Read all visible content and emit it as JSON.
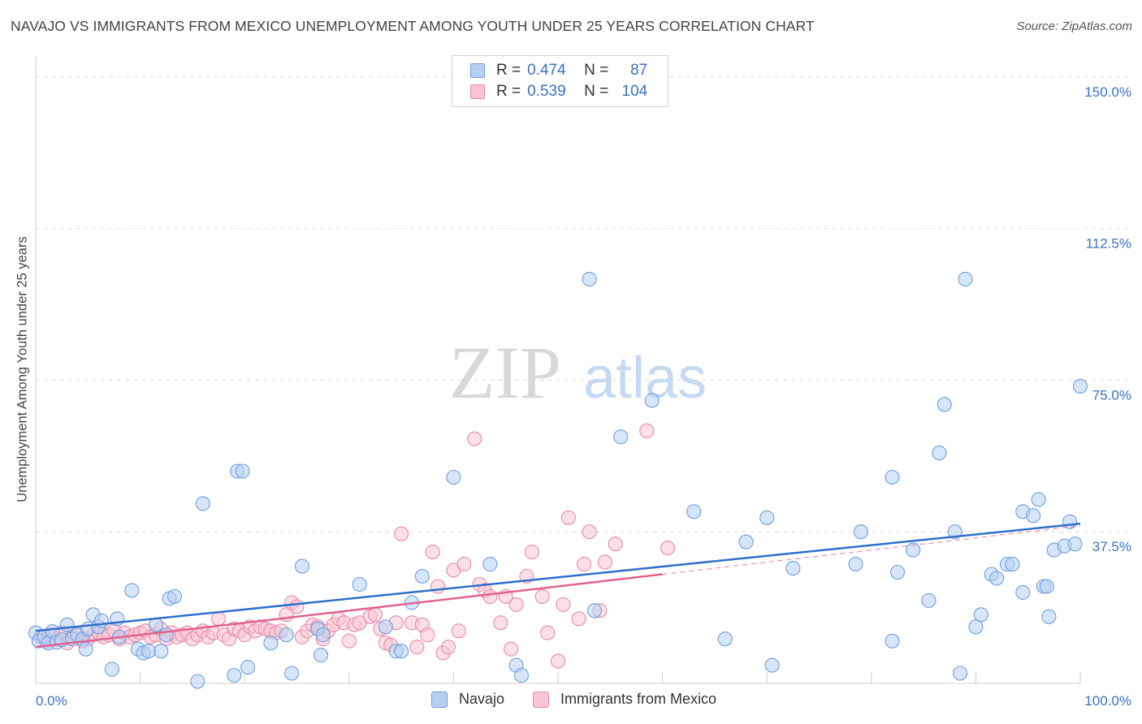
{
  "header": {
    "title": "NAVAJO VS IMMIGRANTS FROM MEXICO UNEMPLOYMENT AMONG YOUTH UNDER 25 YEARS CORRELATION CHART",
    "source": "Source: ZipAtlas.com"
  },
  "watermark": {
    "part1": "ZIP",
    "part2": "atlas"
  },
  "legend_top": {
    "r_label": "R =",
    "n_label": "N =",
    "rows": [
      {
        "r": "0.474",
        "n": "87"
      },
      {
        "r": "0.539",
        "n": "104"
      }
    ]
  },
  "colors": {
    "navajo_fill": "#b7d0f2",
    "navajo_stroke": "#6f9fdc",
    "navajo_line": "#2e6fcc",
    "mexico_fill": "#f9c4d4",
    "mexico_stroke": "#e98aa8",
    "mexico_line": "#e2628f",
    "tick_label": "#3a72c4"
  },
  "chart_data": {
    "type": "scatter",
    "title": "NAVAJO VS IMMIGRANTS FROM MEXICO UNEMPLOYMENT AMONG YOUTH UNDER 25 YEARS CORRELATION CHART",
    "xlabel": "",
    "ylabel": "Unemployment Among Youth under 25 years",
    "xlim": [
      0,
      100
    ],
    "ylim": [
      0,
      155
    ],
    "x_tick_labels": [
      "0.0%",
      "100.0%"
    ],
    "y_tick_labels": [
      "37.5%",
      "75.0%",
      "112.5%",
      "150.0%"
    ],
    "y_ticks": [
      37.5,
      75.0,
      112.5,
      150.0
    ],
    "grid": true,
    "legend_position": "bottom",
    "series": [
      {
        "name": "Navajo",
        "R": 0.474,
        "N": 87,
        "trend": {
          "x": [
            0,
            100
          ],
          "y": [
            13.0,
            39.5
          ]
        },
        "points": [
          [
            0,
            12.5
          ],
          [
            0.3,
            10.5
          ],
          [
            0.8,
            11.5
          ],
          [
            1.2,
            10.0
          ],
          [
            1.6,
            12.8
          ],
          [
            2.0,
            10.2
          ],
          [
            2.5,
            10.8
          ],
          [
            3.0,
            14.5
          ],
          [
            3.5,
            11.0
          ],
          [
            4.0,
            12.0
          ],
          [
            4.5,
            11.0
          ],
          [
            5.0,
            13.5
          ],
          [
            4.8,
            8.5
          ],
          [
            5.5,
            17.0
          ],
          [
            6.0,
            14.0
          ],
          [
            6.3,
            15.5
          ],
          [
            7.3,
            3.5
          ],
          [
            7.8,
            16.0
          ],
          [
            8.0,
            11.5
          ],
          [
            9.2,
            23.0
          ],
          [
            9.8,
            8.5
          ],
          [
            10.3,
            7.5
          ],
          [
            10.8,
            8.0
          ],
          [
            11.5,
            14.5
          ],
          [
            12.0,
            8.0
          ],
          [
            12.5,
            12.0
          ],
          [
            12.8,
            21.0
          ],
          [
            13.3,
            21.5
          ],
          [
            15.5,
            0.5
          ],
          [
            16.0,
            44.5
          ],
          [
            19.0,
            2.0
          ],
          [
            19.3,
            52.5
          ],
          [
            19.8,
            52.5
          ],
          [
            20.3,
            4.0
          ],
          [
            22.5,
            10.0
          ],
          [
            24.0,
            12.0
          ],
          [
            24.5,
            2.5
          ],
          [
            25.5,
            29.0
          ],
          [
            27.0,
            13.5
          ],
          [
            27.3,
            7.0
          ],
          [
            27.5,
            12.0
          ],
          [
            31.0,
            24.5
          ],
          [
            33.5,
            14.0
          ],
          [
            34.5,
            8.0
          ],
          [
            35.0,
            8.0
          ],
          [
            36.0,
            20.0
          ],
          [
            37.0,
            26.5
          ],
          [
            40.0,
            51.0
          ],
          [
            43.5,
            29.5
          ],
          [
            46.0,
            4.5
          ],
          [
            46.5,
            2.0
          ],
          [
            53.5,
            18.0
          ],
          [
            53.0,
            100.0
          ],
          [
            56.0,
            61.0
          ],
          [
            59.0,
            70.0
          ],
          [
            63.0,
            42.5
          ],
          [
            66.0,
            11.0
          ],
          [
            68.0,
            35.0
          ],
          [
            70.0,
            41.0
          ],
          [
            70.5,
            4.5
          ],
          [
            72.5,
            28.5
          ],
          [
            78.5,
            29.5
          ],
          [
            79.0,
            37.5
          ],
          [
            82.0,
            51.0
          ],
          [
            82.5,
            27.5
          ],
          [
            84.0,
            33.0
          ],
          [
            85.5,
            20.5
          ],
          [
            86.5,
            57.0
          ],
          [
            87.0,
            69.0
          ],
          [
            88.0,
            37.5
          ],
          [
            88.5,
            2.5
          ],
          [
            90.0,
            14.0
          ],
          [
            90.5,
            17.0
          ],
          [
            91.5,
            27.0
          ],
          [
            92.0,
            26.0
          ],
          [
            93.0,
            29.5
          ],
          [
            93.5,
            29.5
          ],
          [
            94.5,
            42.5
          ],
          [
            94.5,
            22.5
          ],
          [
            95.5,
            41.5
          ],
          [
            96.0,
            45.5
          ],
          [
            96.5,
            24.0
          ],
          [
            96.8,
            24.0
          ],
          [
            97.0,
            16.5
          ],
          [
            97.5,
            33.0
          ],
          [
            98.5,
            34.0
          ],
          [
            99.0,
            40.0
          ],
          [
            99.5,
            34.5
          ],
          [
            100.0,
            73.5
          ],
          [
            89.0,
            100.0
          ],
          [
            82.0,
            10.5
          ]
        ]
      },
      {
        "name": "Immigrants from Mexico",
        "R": 0.539,
        "N": 104,
        "trend": {
          "x": [
            0,
            60
          ],
          "y": [
            9.0,
            27.0
          ]
        },
        "trend_extension": {
          "x": [
            60,
            100
          ],
          "y": [
            27.0,
            39.0
          ]
        },
        "points": [
          [
            0.5,
            11.5
          ],
          [
            1.0,
            10.5
          ],
          [
            1.5,
            12.0
          ],
          [
            2.0,
            11.0
          ],
          [
            2.5,
            12.5
          ],
          [
            3.0,
            10.0
          ],
          [
            3.5,
            11.5
          ],
          [
            4.0,
            12.0
          ],
          [
            4.5,
            10.5
          ],
          [
            5.0,
            11.0
          ],
          [
            5.5,
            12.0
          ],
          [
            6.0,
            12.5
          ],
          [
            6.5,
            11.5
          ],
          [
            7.0,
            12.0
          ],
          [
            7.5,
            13.0
          ],
          [
            8.0,
            11.0
          ],
          [
            8.5,
            12.5
          ],
          [
            9.0,
            11.5
          ],
          [
            9.5,
            12.0
          ],
          [
            10.0,
            12.5
          ],
          [
            10.5,
            13.0
          ],
          [
            11.0,
            11.5
          ],
          [
            11.5,
            12.0
          ],
          [
            12.0,
            13.5
          ],
          [
            12.5,
            11.0
          ],
          [
            13.0,
            12.5
          ],
          [
            13.5,
            11.5
          ],
          [
            14.0,
            12.0
          ],
          [
            14.5,
            12.5
          ],
          [
            15.0,
            11.0
          ],
          [
            15.5,
            12.0
          ],
          [
            16.0,
            13.0
          ],
          [
            16.5,
            11.5
          ],
          [
            17.0,
            12.5
          ],
          [
            17.5,
            16.0
          ],
          [
            18.0,
            12.0
          ],
          [
            18.5,
            11.0
          ],
          [
            19.0,
            13.5
          ],
          [
            19.5,
            13.0
          ],
          [
            20.0,
            12.0
          ],
          [
            20.5,
            14.0
          ],
          [
            21.0,
            13.0
          ],
          [
            21.5,
            14.0
          ],
          [
            22.0,
            13.5
          ],
          [
            22.5,
            13.0
          ],
          [
            23.0,
            12.5
          ],
          [
            23.5,
            13.0
          ],
          [
            24.0,
            17.0
          ],
          [
            24.5,
            20.0
          ],
          [
            25.0,
            19.0
          ],
          [
            25.5,
            11.5
          ],
          [
            26.0,
            13.0
          ],
          [
            26.5,
            14.5
          ],
          [
            27.0,
            14.0
          ],
          [
            27.5,
            11.0
          ],
          [
            28.0,
            13.0
          ],
          [
            28.5,
            14.5
          ],
          [
            29.0,
            16.0
          ],
          [
            29.5,
            15.0
          ],
          [
            30.0,
            10.5
          ],
          [
            30.5,
            14.5
          ],
          [
            31.0,
            15.0
          ],
          [
            32.0,
            16.5
          ],
          [
            32.5,
            17.0
          ],
          [
            33.0,
            13.5
          ],
          [
            33.5,
            10.0
          ],
          [
            34.0,
            9.5
          ],
          [
            34.5,
            15.0
          ],
          [
            35.0,
            37.0
          ],
          [
            36.0,
            15.0
          ],
          [
            36.5,
            9.0
          ],
          [
            37.0,
            14.5
          ],
          [
            37.5,
            12.0
          ],
          [
            38.0,
            32.5
          ],
          [
            38.5,
            24.0
          ],
          [
            39.0,
            7.5
          ],
          [
            39.5,
            9.0
          ],
          [
            40.0,
            28.0
          ],
          [
            40.5,
            13.0
          ],
          [
            41.0,
            29.5
          ],
          [
            42.0,
            60.5
          ],
          [
            42.5,
            24.5
          ],
          [
            43.0,
            23.0
          ],
          [
            43.5,
            21.5
          ],
          [
            44.5,
            15.0
          ],
          [
            45.0,
            21.5
          ],
          [
            45.5,
            8.5
          ],
          [
            46.0,
            19.5
          ],
          [
            47.0,
            26.5
          ],
          [
            47.5,
            32.5
          ],
          [
            48.5,
            21.5
          ],
          [
            49.0,
            12.5
          ],
          [
            50.0,
            5.5
          ],
          [
            50.5,
            19.5
          ],
          [
            51.0,
            41.0
          ],
          [
            52.0,
            16.0
          ],
          [
            52.5,
            29.5
          ],
          [
            53.0,
            37.5
          ],
          [
            54.0,
            18.0
          ],
          [
            54.5,
            30.0
          ],
          [
            55.5,
            34.5
          ],
          [
            58.5,
            62.5
          ],
          [
            60.5,
            33.5
          ]
        ]
      }
    ]
  },
  "bottom_legend": [
    {
      "label": "Navajo"
    },
    {
      "label": "Immigrants from Mexico"
    }
  ]
}
